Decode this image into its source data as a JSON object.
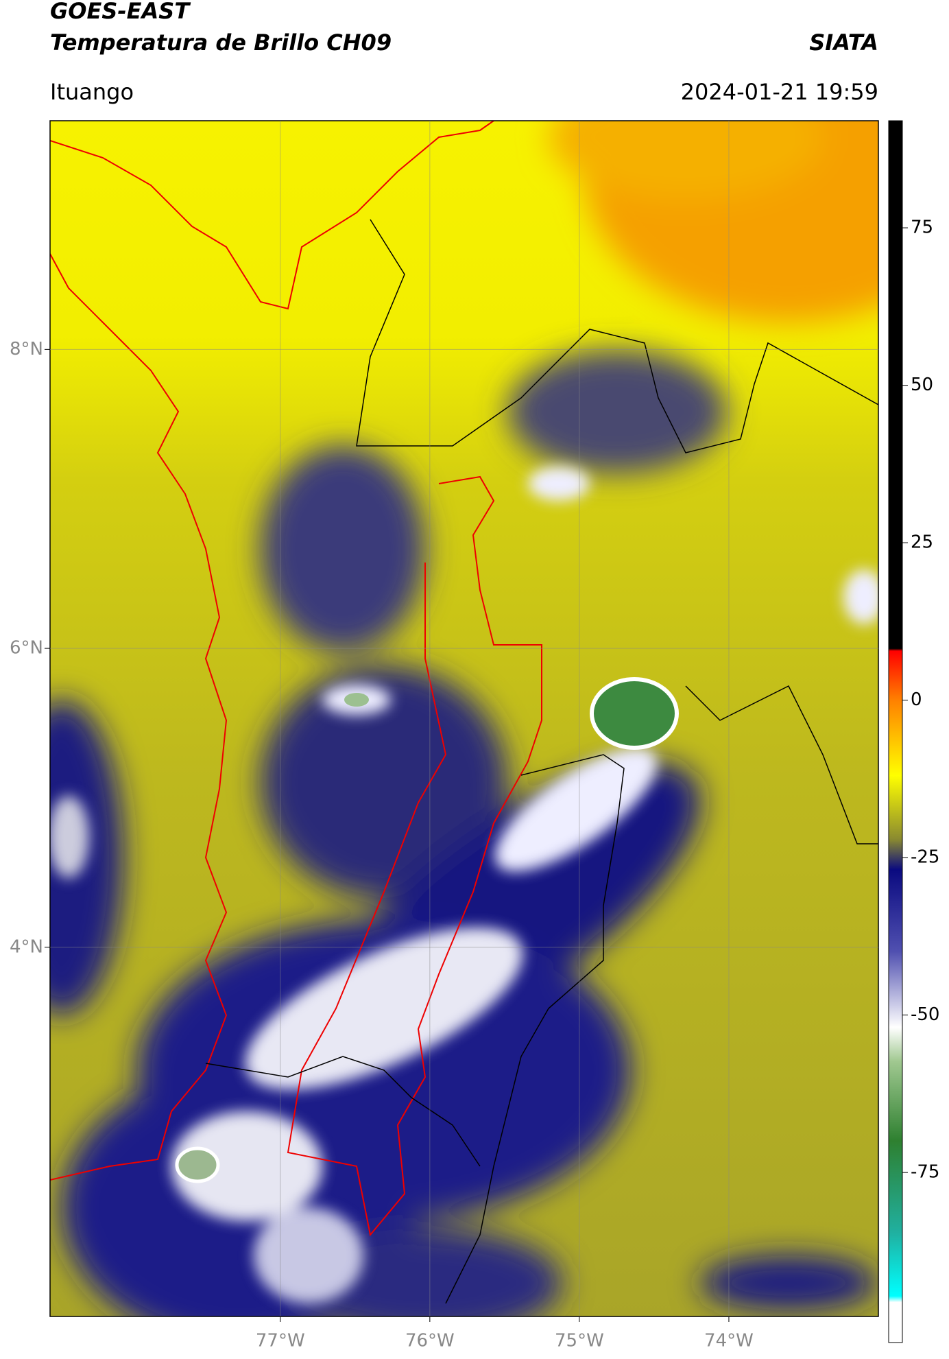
{
  "chart_data": {
    "type": "map",
    "title": "GOES-EAST",
    "subtitle": "Temperatura de Brillo CH09",
    "source": "SIATA",
    "location": "Ituango",
    "datetime": "2024-01-21 19:59",
    "xlim": [
      -78.54,
      -73.0
    ],
    "ylim": [
      1.53,
      9.53
    ],
    "xticks": [
      {
        "value": -77,
        "label": "77°W"
      },
      {
        "value": -76,
        "label": "76°W"
      },
      {
        "value": -75,
        "label": "75°W"
      },
      {
        "value": -74,
        "label": "74°W"
      }
    ],
    "yticks": [
      {
        "value": 4,
        "label": "4°N"
      },
      {
        "value": 6,
        "label": "6°N"
      },
      {
        "value": 8,
        "label": "8°N"
      }
    ],
    "grid": true,
    "colorbar": {
      "lim": [
        -102,
        92
      ],
      "ticks": [
        -75,
        -50,
        -25,
        0,
        25,
        50,
        75
      ]
    }
  }
}
